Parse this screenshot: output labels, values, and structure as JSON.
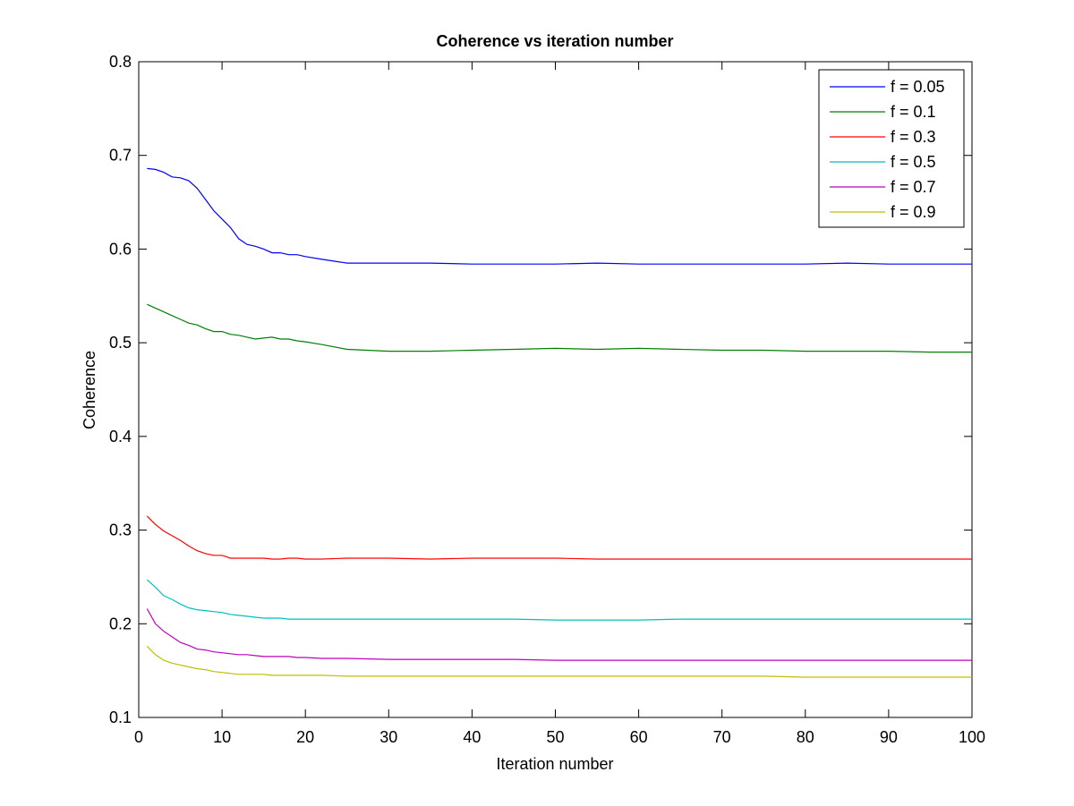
{
  "chart_data": {
    "type": "line",
    "title": "Coherence vs iteration number",
    "xlabel": "Iteration number",
    "ylabel": "Coherence",
    "xlim": [
      0,
      100
    ],
    "ylim": [
      0.1,
      0.8
    ],
    "xticks": [
      0,
      10,
      20,
      30,
      40,
      50,
      60,
      70,
      80,
      90,
      100
    ],
    "yticks": [
      0.1,
      0.2,
      0.3,
      0.4,
      0.5,
      0.6,
      0.7,
      0.8
    ],
    "x": [
      1,
      2,
      3,
      4,
      5,
      6,
      7,
      8,
      9,
      10,
      11,
      12,
      13,
      14,
      15,
      16,
      17,
      18,
      19,
      20,
      22,
      25,
      30,
      35,
      40,
      45,
      50,
      55,
      60,
      65,
      70,
      75,
      80,
      85,
      90,
      95,
      100
    ],
    "grid": false,
    "legend_position": "top-right",
    "series": [
      {
        "name": "f = 0.05",
        "color": "#0000ff",
        "values": [
          0.686,
          0.685,
          0.682,
          0.677,
          0.676,
          0.673,
          0.665,
          0.653,
          0.641,
          0.632,
          0.623,
          0.611,
          0.605,
          0.603,
          0.6,
          0.596,
          0.596,
          0.594,
          0.594,
          0.592,
          0.589,
          0.585,
          0.585,
          0.585,
          0.584,
          0.584,
          0.584,
          0.585,
          0.584,
          0.584,
          0.584,
          0.584,
          0.584,
          0.585,
          0.584,
          0.584,
          0.584
        ]
      },
      {
        "name": "f = 0.1",
        "color": "#008000",
        "values": [
          0.541,
          0.537,
          0.533,
          0.529,
          0.525,
          0.521,
          0.519,
          0.515,
          0.512,
          0.512,
          0.509,
          0.508,
          0.506,
          0.504,
          0.505,
          0.506,
          0.504,
          0.504,
          0.502,
          0.501,
          0.498,
          0.493,
          0.491,
          0.491,
          0.492,
          0.493,
          0.494,
          0.493,
          0.494,
          0.493,
          0.492,
          0.492,
          0.491,
          0.491,
          0.491,
          0.49,
          0.49
        ]
      },
      {
        "name": "f = 0.3",
        "color": "#ff0000",
        "values": [
          0.315,
          0.306,
          0.299,
          0.294,
          0.289,
          0.283,
          0.278,
          0.275,
          0.273,
          0.273,
          0.27,
          0.27,
          0.27,
          0.27,
          0.27,
          0.269,
          0.269,
          0.27,
          0.27,
          0.269,
          0.269,
          0.27,
          0.27,
          0.269,
          0.27,
          0.27,
          0.27,
          0.269,
          0.269,
          0.269,
          0.269,
          0.269,
          0.269,
          0.269,
          0.269,
          0.269,
          0.269
        ]
      },
      {
        "name": "f = 0.5",
        "color": "#00bfbf",
        "values": [
          0.247,
          0.239,
          0.23,
          0.226,
          0.221,
          0.217,
          0.215,
          0.214,
          0.213,
          0.212,
          0.21,
          0.209,
          0.208,
          0.207,
          0.206,
          0.206,
          0.206,
          0.205,
          0.205,
          0.205,
          0.205,
          0.205,
          0.205,
          0.205,
          0.205,
          0.205,
          0.204,
          0.204,
          0.204,
          0.205,
          0.205,
          0.205,
          0.205,
          0.205,
          0.205,
          0.205,
          0.205
        ]
      },
      {
        "name": "f = 0.7",
        "color": "#bf00bf",
        "values": [
          0.216,
          0.2,
          0.192,
          0.186,
          0.18,
          0.177,
          0.173,
          0.172,
          0.17,
          0.169,
          0.168,
          0.167,
          0.167,
          0.166,
          0.165,
          0.165,
          0.165,
          0.165,
          0.164,
          0.164,
          0.163,
          0.163,
          0.162,
          0.162,
          0.162,
          0.162,
          0.161,
          0.161,
          0.161,
          0.161,
          0.161,
          0.161,
          0.161,
          0.161,
          0.161,
          0.161,
          0.161
        ]
      },
      {
        "name": "f = 0.9",
        "color": "#bfbf00",
        "values": [
          0.176,
          0.167,
          0.161,
          0.158,
          0.156,
          0.154,
          0.152,
          0.151,
          0.149,
          0.148,
          0.147,
          0.146,
          0.146,
          0.146,
          0.146,
          0.145,
          0.145,
          0.145,
          0.145,
          0.145,
          0.145,
          0.144,
          0.144,
          0.144,
          0.144,
          0.144,
          0.144,
          0.144,
          0.144,
          0.144,
          0.144,
          0.144,
          0.143,
          0.143,
          0.143,
          0.143,
          0.143
        ]
      }
    ]
  }
}
